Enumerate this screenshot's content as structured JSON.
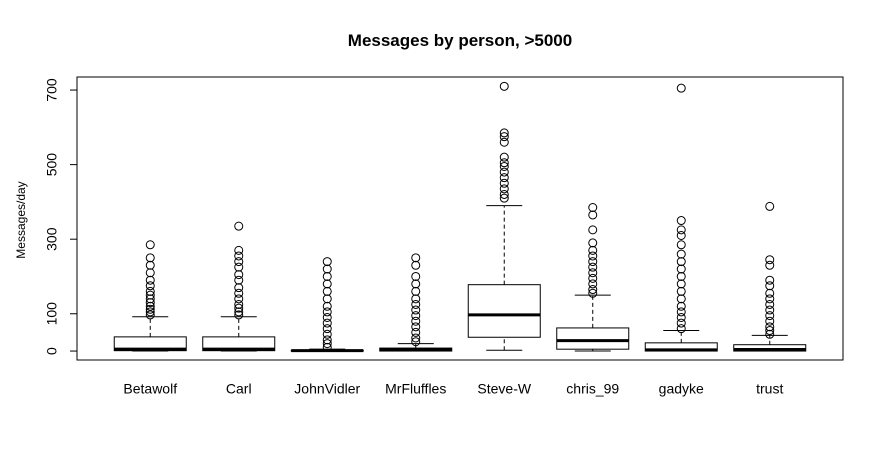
{
  "chart_data": {
    "type": "box",
    "title": "Messages by person, >5000",
    "y_label": "Messages/day",
    "categories": [
      "Betawolf",
      "Carl",
      "JohnVidler",
      "MrFluffles",
      "Steve-W",
      "chris_99",
      "gadyke",
      "trust"
    ],
    "boxes": [
      {
        "min": 0,
        "q1": 1,
        "median": 5,
        "q3": 38,
        "max": 92,
        "outliers": [
          97,
          105,
          112,
          120,
          130,
          140,
          150,
          160,
          175,
          190,
          210,
          230,
          250,
          285
        ]
      },
      {
        "min": 0,
        "q1": 1,
        "median": 5,
        "q3": 38,
        "max": 92,
        "outliers": [
          97,
          105,
          115,
          125,
          140,
          155,
          170,
          190,
          205,
          225,
          240,
          255,
          270,
          335
        ]
      },
      {
        "min": 0,
        "q1": 0,
        "median": 1,
        "q3": 2,
        "max": 5,
        "outliers": [
          10,
          20,
          30,
          45,
          60,
          75,
          90,
          105,
          120,
          140,
          160,
          180,
          200,
          220,
          240
        ]
      },
      {
        "min": 0,
        "q1": 0,
        "median": 3,
        "q3": 8,
        "max": 20,
        "outliers": [
          25,
          35,
          50,
          65,
          80,
          95,
          110,
          125,
          140,
          160,
          180,
          200,
          230,
          250
        ]
      },
      {
        "min": 2,
        "q1": 37,
        "median": 97,
        "q3": 178,
        "max": 390,
        "outliers": [
          410,
          420,
          435,
          450,
          465,
          480,
          495,
          505,
          520,
          560,
          575,
          585,
          710
        ]
      },
      {
        "min": 0,
        "q1": 5,
        "median": 28,
        "q3": 62,
        "max": 150,
        "outliers": [
          155,
          165,
          180,
          195,
          210,
          225,
          240,
          255,
          270,
          290,
          325,
          365,
          385
        ]
      },
      {
        "min": 0,
        "q1": 0,
        "median": 3,
        "q3": 22,
        "max": 55,
        "outliers": [
          60,
          75,
          90,
          105,
          120,
          140,
          160,
          180,
          200,
          220,
          240,
          260,
          285,
          310,
          325,
          350,
          705
        ]
      },
      {
        "min": 0,
        "q1": 0,
        "median": 4,
        "q3": 17,
        "max": 42,
        "outliers": [
          45,
          55,
          65,
          80,
          95,
          110,
          125,
          140,
          155,
          175,
          190,
          230,
          245,
          388
        ]
      }
    ],
    "ylim": [
      -24,
      735
    ],
    "yticks": [
      0,
      100,
      300,
      500,
      700
    ]
  }
}
